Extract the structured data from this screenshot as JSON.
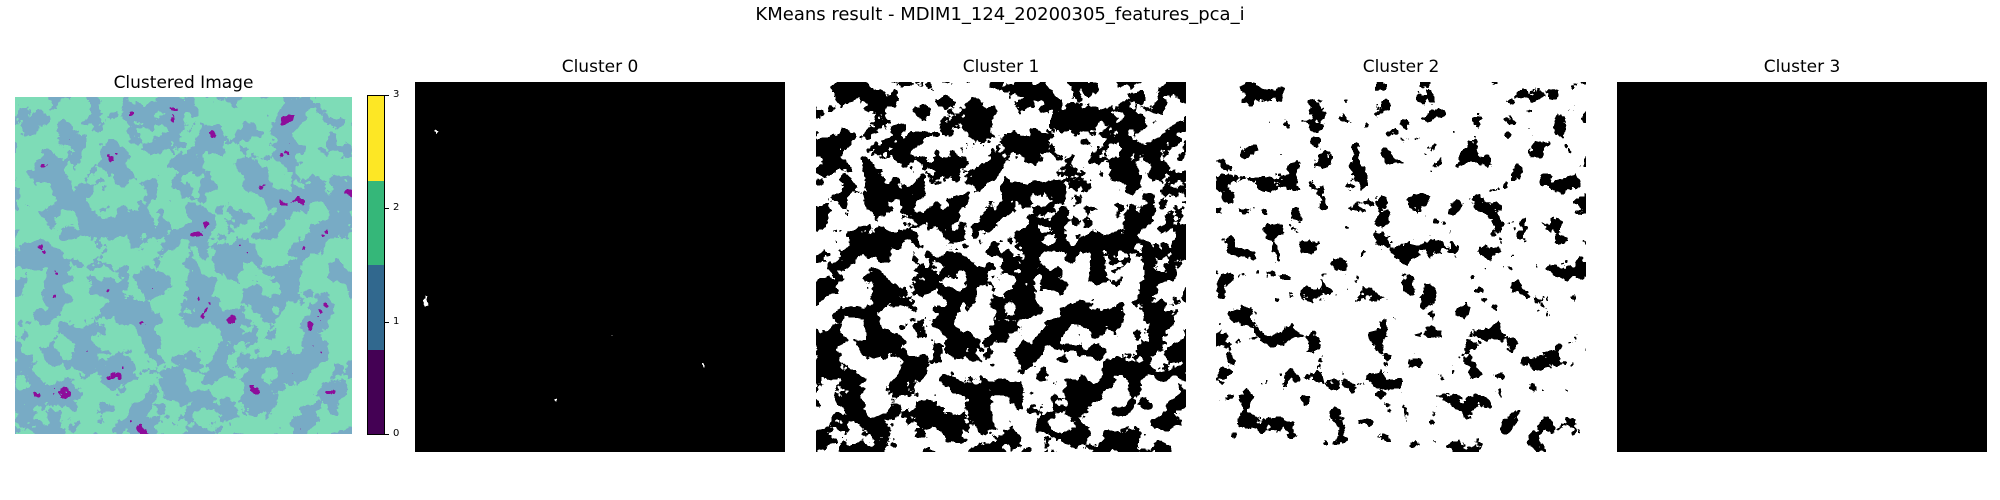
{
  "figure": {
    "title": "KMeans result - MDIM1_124_20200305_features_pca_i"
  },
  "panels": [
    {
      "title": "Clustered Image"
    },
    {
      "title": "Cluster 0"
    },
    {
      "title": "Cluster 1"
    },
    {
      "title": "Cluster 2"
    },
    {
      "title": "Cluster 3"
    }
  ],
  "colorbar": {
    "ticks": [
      "0",
      "1",
      "2",
      "3"
    ],
    "colors": [
      "#440154",
      "#31688e",
      "#35b779",
      "#fde725"
    ]
  }
}
